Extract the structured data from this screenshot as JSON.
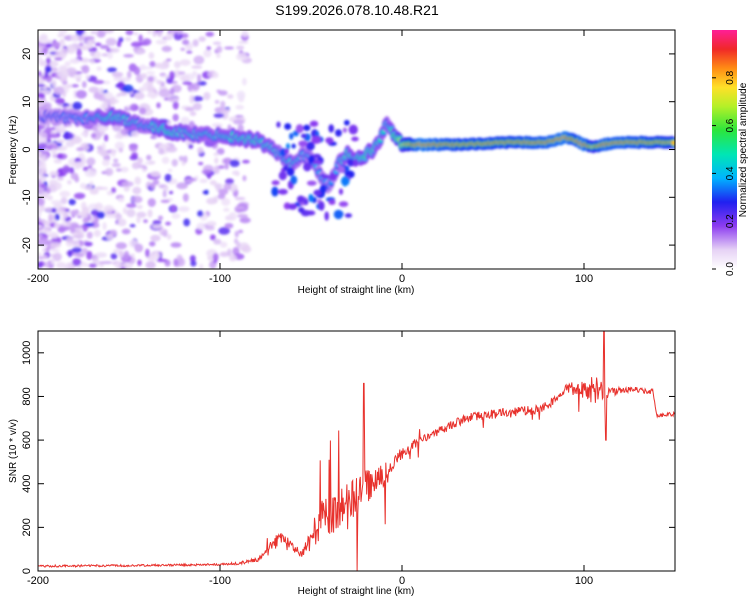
{
  "title": "S199.2026.078.10.48.R21",
  "chart_data": [
    {
      "type": "heatmap",
      "name": "spectrogram",
      "xlabel": "Height of straight line (km)",
      "ylabel": "Frequency (Hz)",
      "xlim": [
        -200,
        150
      ],
      "ylim": [
        -25,
        25
      ],
      "xticks": [
        -200,
        -100,
        0,
        100
      ],
      "yticks": [
        -20,
        -10,
        0,
        10,
        20
      ],
      "colorbar": {
        "label": "Normalized spectral amplitude",
        "range": [
          0,
          1
        ],
        "ticks": [
          0.0,
          0.2,
          0.4,
          0.6,
          0.8
        ]
      },
      "ridge": {
        "x": [
          -200,
          -170,
          -160,
          -150,
          -140,
          -130,
          -120,
          -110,
          -100,
          -90,
          -80,
          -70,
          -65,
          -60,
          -55,
          -50,
          -45,
          -40,
          -35,
          -30,
          -25,
          -20,
          -15,
          -10,
          -8,
          -5,
          0,
          10,
          30,
          60,
          80,
          90,
          95,
          100,
          105,
          110,
          120,
          150
        ],
        "freq": [
          7,
          6.5,
          7,
          6,
          5,
          4,
          3.5,
          3,
          3,
          2.5,
          2,
          0,
          -2,
          -3,
          -1,
          -2,
          -5,
          -8,
          -3,
          -1,
          -2,
          -1,
          0,
          4,
          6,
          3,
          1,
          1,
          1,
          1.5,
          1.5,
          2.5,
          2,
          1,
          0.5,
          1,
          1.5,
          1.5
        ],
        "amp": [
          0.3,
          0.4,
          0.5,
          0.45,
          0.4,
          0.55,
          0.45,
          0.45,
          0.45,
          0.5,
          0.5,
          0.45,
          0.4,
          0.45,
          0.4,
          0.4,
          0.4,
          0.35,
          0.4,
          0.5,
          0.5,
          0.55,
          0.5,
          0.45,
          0.4,
          0.55,
          0.7,
          0.95,
          0.85,
          0.85,
          0.9,
          0.95,
          0.85,
          0.95,
          0.75,
          0.9,
          0.9,
          0.8
        ]
      }
    },
    {
      "type": "line",
      "name": "snr",
      "xlabel": "Height of straight line (km)",
      "ylabel": "SNR (10 * v/v)",
      "xlim": [
        -200,
        150
      ],
      "ylim": [
        0,
        1100
      ],
      "xticks": [
        -200,
        -100,
        0,
        100
      ],
      "yticks": [
        0,
        200,
        400,
        600,
        800,
        1000
      ],
      "color": "#e8322d",
      "series": [
        {
          "name": "SNR",
          "x": [
            -200,
            -150,
            -100,
            -90,
            -80,
            -75,
            -70,
            -65,
            -60,
            -55,
            -50,
            -45,
            -40,
            -35,
            -30,
            -25,
            -20,
            -15,
            -10,
            -5,
            0,
            10,
            20,
            30,
            40,
            50,
            55,
            60,
            65,
            70,
            80,
            85,
            90,
            95,
            100,
            105,
            110,
            115,
            120,
            130,
            138,
            140,
            145,
            150
          ],
          "base": [
            22,
            25,
            30,
            35,
            50,
            80,
            130,
            150,
            110,
            80,
            150,
            230,
            260,
            280,
            300,
            340,
            380,
            400,
            430,
            470,
            540,
            600,
            640,
            680,
            710,
            720,
            725,
            720,
            740,
            730,
            760,
            790,
            840,
            830,
            830,
            825,
            830,
            820,
            830,
            830,
            820,
            710,
            720,
            720
          ],
          "noise": [
            10,
            10,
            10,
            12,
            20,
            40,
            60,
            60,
            40,
            50,
            120,
            180,
            180,
            220,
            200,
            180,
            180,
            150,
            120,
            100,
            60,
            40,
            40,
            40,
            40,
            45,
            45,
            40,
            40,
            50,
            40,
            40,
            40,
            60,
            80,
            140,
            100,
            40,
            30,
            25,
            25,
            20,
            20,
            20
          ]
        }
      ]
    }
  ]
}
